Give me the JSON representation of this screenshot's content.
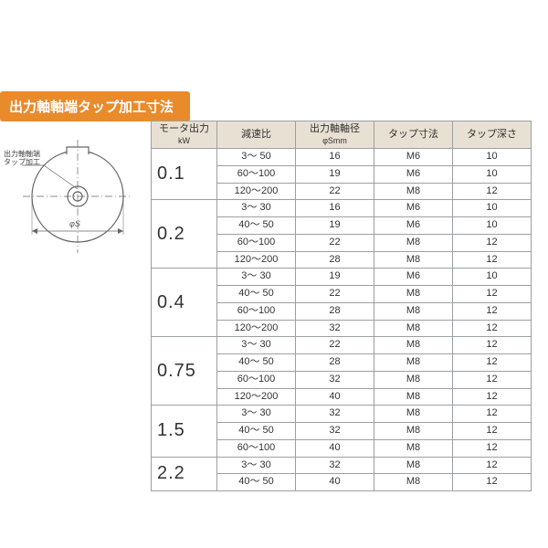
{
  "banner": {
    "text": "出力軸軸端タップ加工寸法",
    "bg": "#e98a2b",
    "fg": "#ffffff"
  },
  "border_color": "#9aa0a6",
  "header_bg": "#e8e0d2",
  "diagram": {
    "annotation_line1": "出力軸軸端",
    "annotation_line2": "タップ加工",
    "dim_label": "φS"
  },
  "columns": [
    {
      "label": "モータ出力",
      "sub": "kW"
    },
    {
      "label": "減速比",
      "sub": ""
    },
    {
      "label": "出力軸軸径",
      "sub": "φSmm"
    },
    {
      "label": "タップ寸法",
      "sub": ""
    },
    {
      "label": "タップ深さ",
      "sub": ""
    }
  ],
  "groups": [
    {
      "kw": "0.1",
      "rows": [
        {
          "ratio": "3～  50",
          "dia": "16",
          "tap": "M6",
          "depth": "10"
        },
        {
          "ratio": "60～100",
          "dia": "19",
          "tap": "M6",
          "depth": "10"
        },
        {
          "ratio": "120～200",
          "dia": "22",
          "tap": "M8",
          "depth": "12"
        }
      ]
    },
    {
      "kw": "0.2",
      "rows": [
        {
          "ratio": "3～  30",
          "dia": "16",
          "tap": "M6",
          "depth": "10"
        },
        {
          "ratio": "40～  50",
          "dia": "19",
          "tap": "M6",
          "depth": "10"
        },
        {
          "ratio": "60～100",
          "dia": "22",
          "tap": "M8",
          "depth": "12"
        },
        {
          "ratio": "120～200",
          "dia": "28",
          "tap": "M8",
          "depth": "12"
        }
      ]
    },
    {
      "kw": "0.4",
      "rows": [
        {
          "ratio": "3～  30",
          "dia": "19",
          "tap": "M6",
          "depth": "10"
        },
        {
          "ratio": "40～  50",
          "dia": "22",
          "tap": "M8",
          "depth": "12"
        },
        {
          "ratio": "60～100",
          "dia": "28",
          "tap": "M8",
          "depth": "12"
        },
        {
          "ratio": "120～200",
          "dia": "32",
          "tap": "M8",
          "depth": "12"
        }
      ]
    },
    {
      "kw": "0.75",
      "rows": [
        {
          "ratio": "3～  30",
          "dia": "22",
          "tap": "M8",
          "depth": "12"
        },
        {
          "ratio": "40～  50",
          "dia": "28",
          "tap": "M8",
          "depth": "12"
        },
        {
          "ratio": "60～100",
          "dia": "32",
          "tap": "M8",
          "depth": "12"
        },
        {
          "ratio": "120～200",
          "dia": "40",
          "tap": "M8",
          "depth": "12"
        }
      ]
    },
    {
      "kw": "1.5",
      "rows": [
        {
          "ratio": "3～  30",
          "dia": "32",
          "tap": "M8",
          "depth": "12"
        },
        {
          "ratio": "40～  50",
          "dia": "32",
          "tap": "M8",
          "depth": "12"
        },
        {
          "ratio": "60～100",
          "dia": "40",
          "tap": "M8",
          "depth": "12"
        }
      ]
    },
    {
      "kw": "2.2",
      "rows": [
        {
          "ratio": "3～  30",
          "dia": "32",
          "tap": "M8",
          "depth": "12"
        },
        {
          "ratio": "40～  50",
          "dia": "40",
          "tap": "M8",
          "depth": "12"
        }
      ]
    }
  ]
}
